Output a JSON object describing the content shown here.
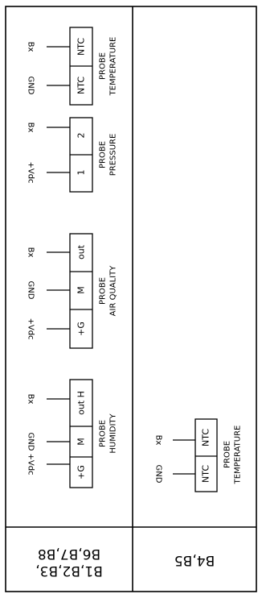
{
  "columns": [
    {
      "footer": {
        "line1": "B1,B2,B3,",
        "line2": "B6,B7,B8"
      },
      "probes": [
        {
          "title": "PROBE",
          "subtitle": "TEMPERATURE",
          "cells": [
            "NTC",
            "NTC"
          ],
          "wires": [
            "GND",
            "Bx"
          ]
        },
        {
          "title": "PROBE",
          "subtitle": "PRESSURE",
          "cells": [
            "1",
            "2"
          ],
          "wires": [
            "+Vdc",
            "Bx"
          ]
        },
        {
          "title": "PROBE",
          "subtitle": "AIR QUALITY",
          "cells": [
            "+G",
            "M",
            "out"
          ],
          "wires": [
            "+Vdc",
            "GND",
            "Bx"
          ]
        },
        {
          "title": "PROBE",
          "subtitle": "HUMIDITY",
          "cells": [
            "+G",
            "M",
            "out H"
          ],
          "wires": [
            "+Vdc",
            "GND",
            "Bx"
          ]
        }
      ]
    },
    {
      "footer": {
        "line1": "B4,B5"
      },
      "probes": [
        {
          "title": "PROBE",
          "subtitle": "TEMPERATURE",
          "cells": [
            "NTC",
            "NTC"
          ],
          "wires": [
            "GND",
            "Bx"
          ]
        }
      ]
    }
  ]
}
